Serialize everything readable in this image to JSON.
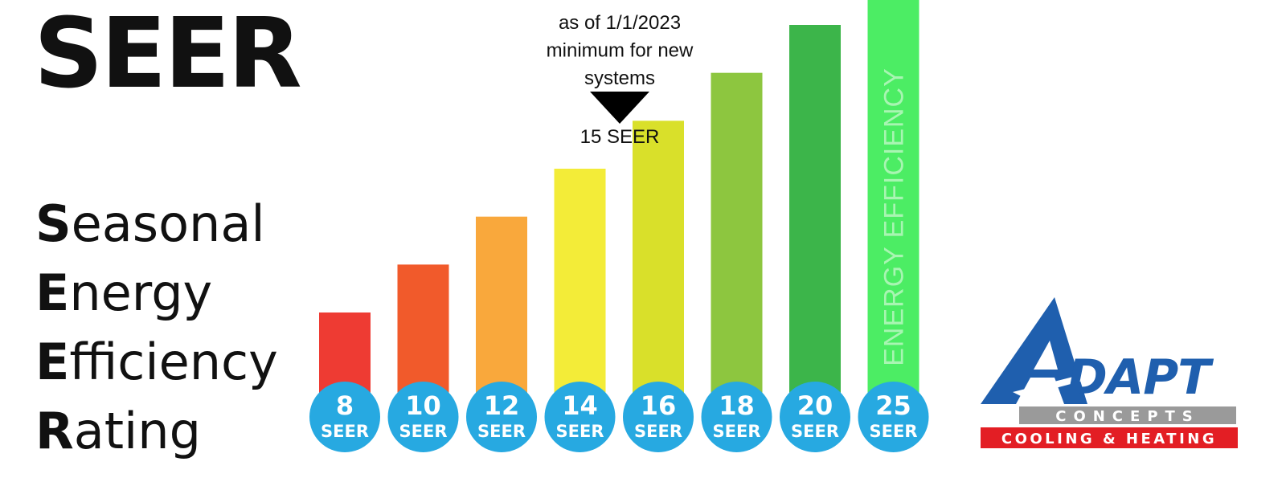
{
  "header": {
    "title": "SEER",
    "acronym": [
      {
        "first": "S",
        "rest": "easonal"
      },
      {
        "first": "E",
        "rest": "nergy"
      },
      {
        "first": "E",
        "rest": "fficiency"
      },
      {
        "first": "R",
        "rest": "ating"
      }
    ]
  },
  "chart_data": {
    "type": "bar",
    "categories": [
      "8",
      "10",
      "12",
      "14",
      "16",
      "18",
      "20",
      "25"
    ],
    "category_suffix": "SEER",
    "values": [
      8,
      10,
      12,
      14,
      16,
      18,
      20,
      25
    ],
    "bar_colors": [
      "#ee3b33",
      "#f15a2b",
      "#f9a83c",
      "#f3ec38",
      "#d9e02a",
      "#8dc63f",
      "#3cb54a",
      "#4ced64"
    ],
    "badge_color": "#27a9e1",
    "bar_text": "ENERGY EFFICIENCY",
    "bar_text_color": "#a8f5b2",
    "annotation": {
      "lines": [
        "as of 1/1/2023",
        "minimum for new",
        "systems"
      ],
      "marker_value": 15,
      "marker_label": "15 SEER"
    }
  },
  "logo": {
    "letters": "DAPT",
    "band1": "CONCEPTS",
    "band2": "COOLING & HEATING",
    "colors": {
      "blue": "#1f5fae",
      "gray": "#9a9a9a",
      "red": "#e31e24"
    }
  }
}
